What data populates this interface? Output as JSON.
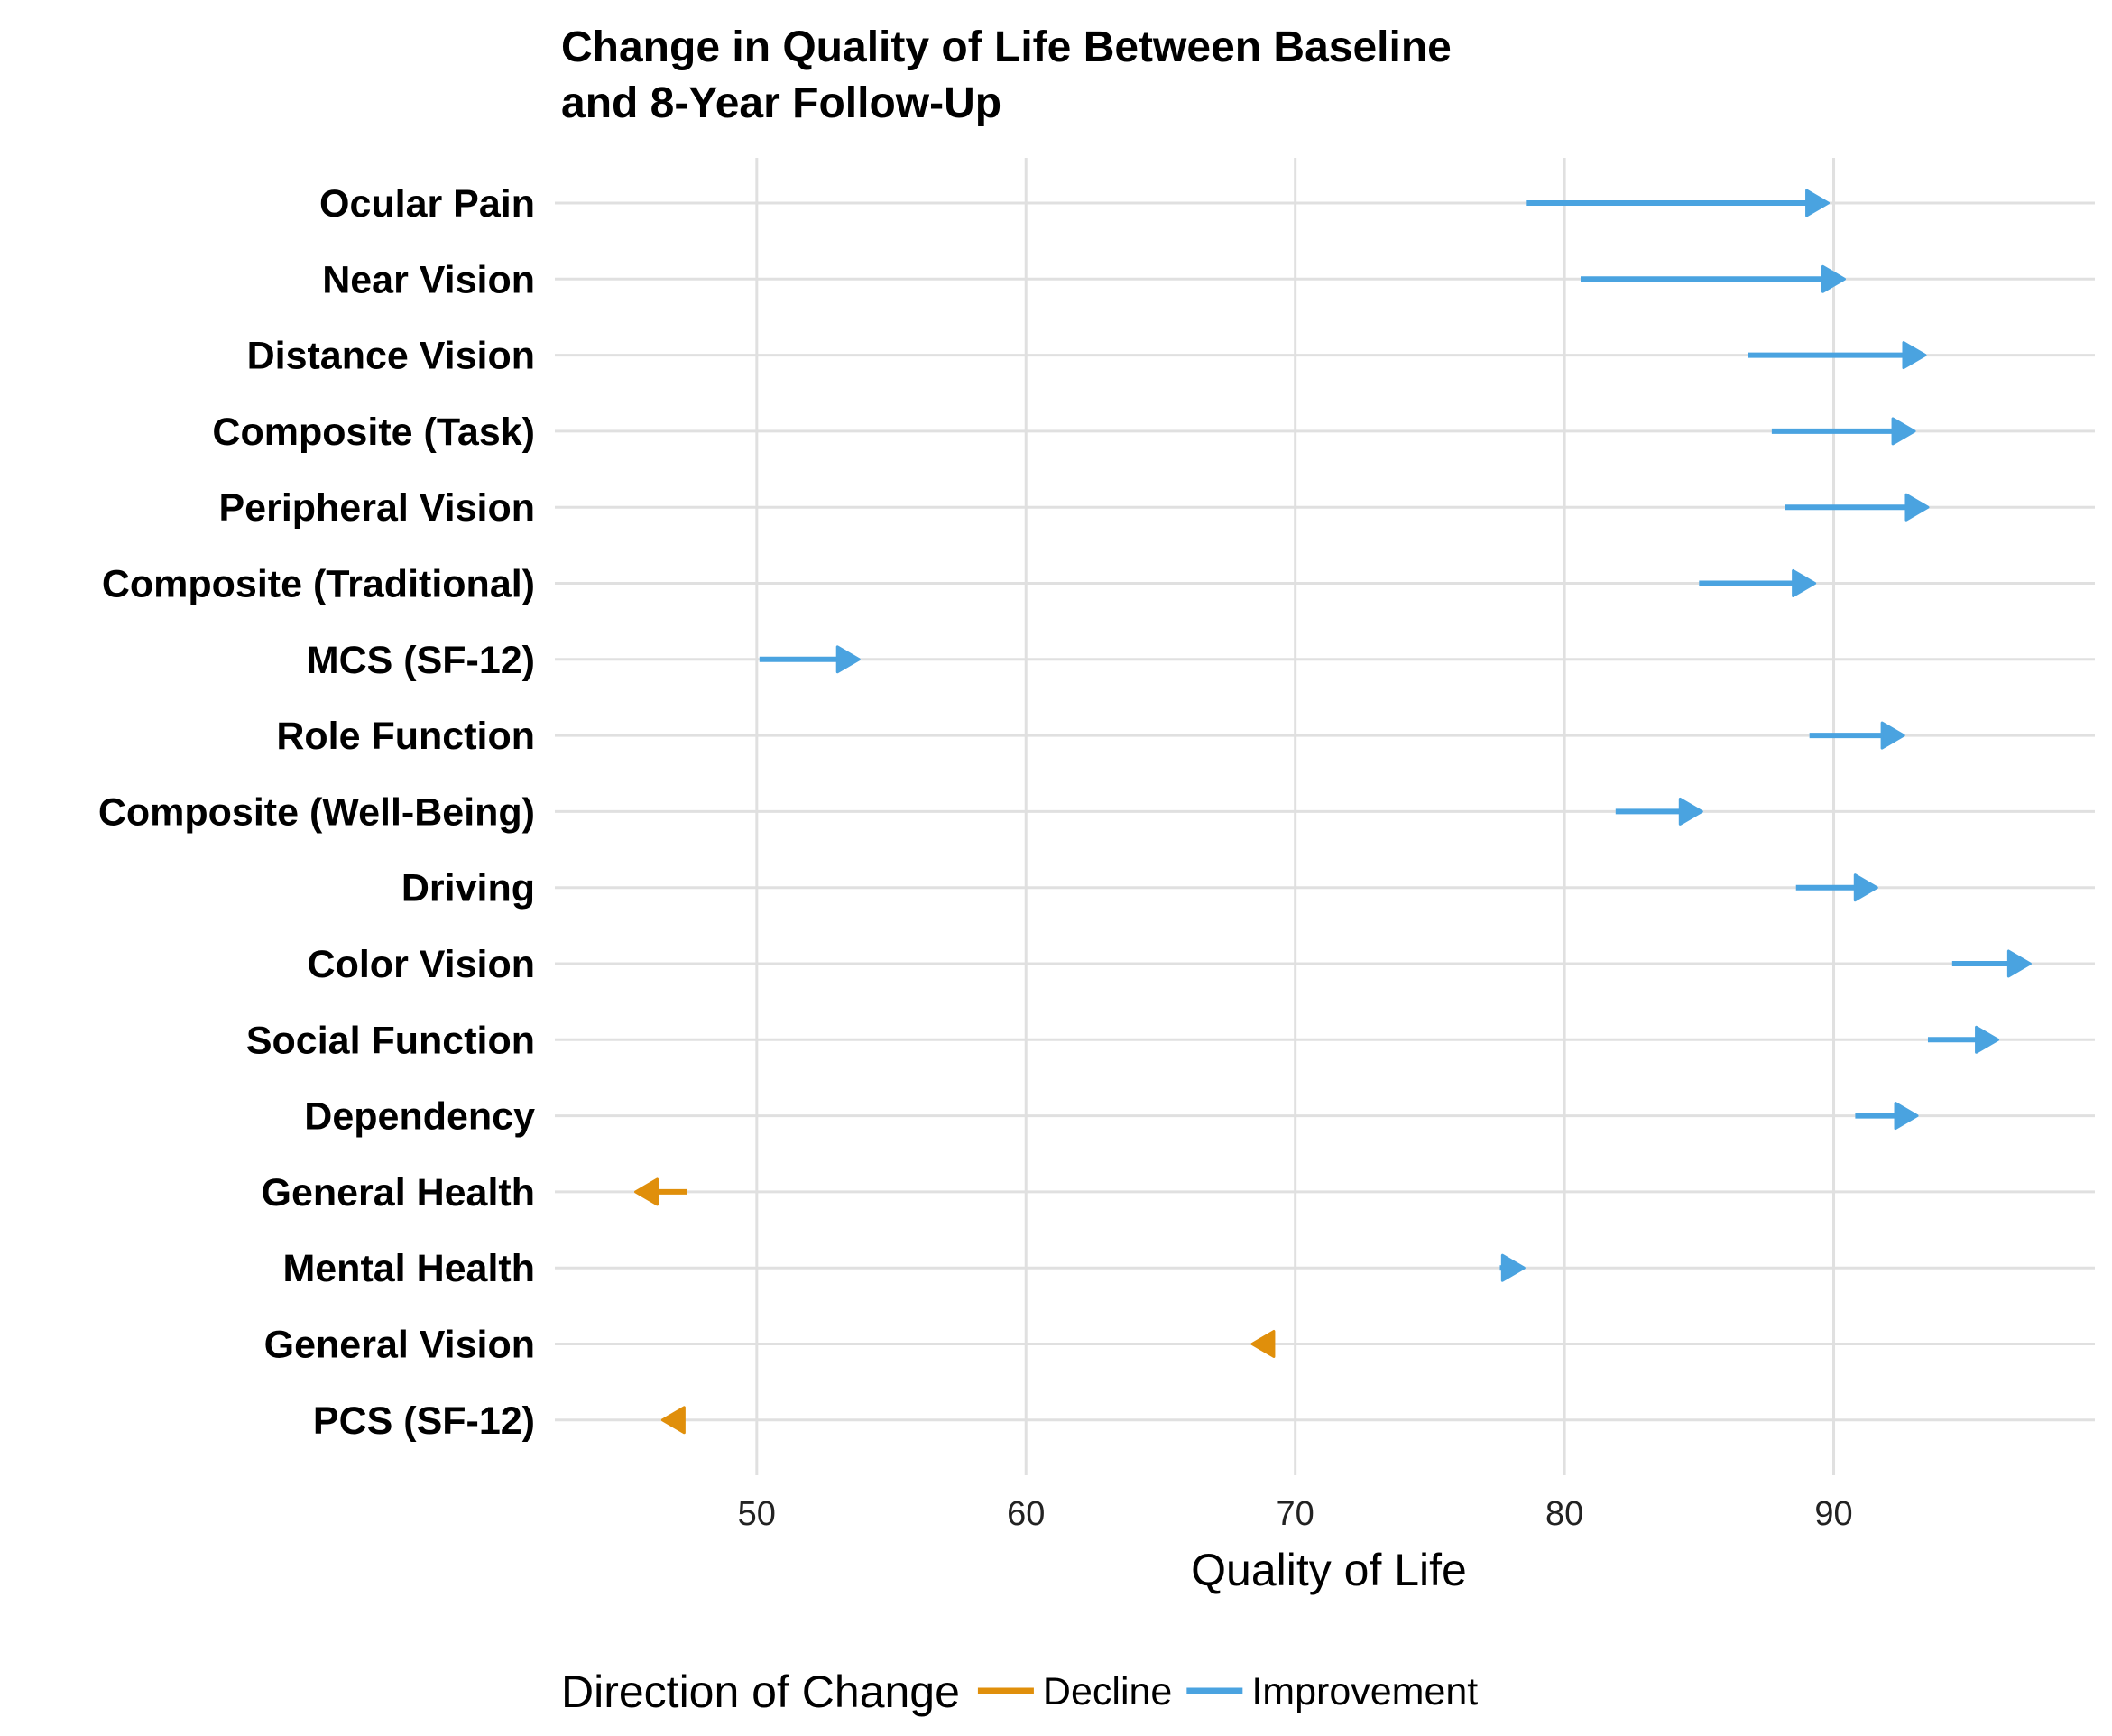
{
  "chart_data": {
    "type": "arrow-dumbbell",
    "title_lines": [
      "Change in Quality of Life Between Baseline",
      "and 8-Year Follow-Up"
    ],
    "xlabel": "Quality of Life",
    "ylabel": "",
    "xlim": [
      42.5,
      99.7
    ],
    "x_ticks": [
      50,
      60,
      70,
      80,
      90
    ],
    "grid": true,
    "legend": {
      "title": "Direction of Change",
      "position": "bottom",
      "entries": [
        {
          "label": "Decline",
          "color": "#E08F0B"
        },
        {
          "label": "Improvement",
          "color": "#4AA3E0"
        }
      ]
    },
    "categories": [
      "Ocular Pain",
      "Near Vision",
      "Distance Vision",
      "Composite (Task)",
      "Peripheral Vision",
      "Composite (Traditional)",
      "MCS (SF-12)",
      "Role Function",
      "Composite (Well-Being)",
      "Driving",
      "Color Vision",
      "Social Function",
      "Dependency",
      "General Health",
      "Mental Health",
      "General Vision",
      "PCS (SF-12)"
    ],
    "rows": [
      {
        "category": "Ocular Pain",
        "baseline": 78.6,
        "followup": 89.8,
        "direction": "Improvement"
      },
      {
        "category": "Near Vision",
        "baseline": 80.6,
        "followup": 90.4,
        "direction": "Improvement"
      },
      {
        "category": "Distance Vision",
        "baseline": 86.8,
        "followup": 93.4,
        "direction": "Improvement"
      },
      {
        "category": "Composite (Task)",
        "baseline": 87.7,
        "followup": 93.0,
        "direction": "Improvement"
      },
      {
        "category": "Peripheral Vision",
        "baseline": 88.2,
        "followup": 93.5,
        "direction": "Improvement"
      },
      {
        "category": "Composite (Traditional)",
        "baseline": 85.0,
        "followup": 89.3,
        "direction": "Improvement"
      },
      {
        "category": "MCS (SF-12)",
        "baseline": 50.1,
        "followup": 53.8,
        "direction": "Improvement"
      },
      {
        "category": "Role Function",
        "baseline": 89.1,
        "followup": 92.6,
        "direction": "Improvement"
      },
      {
        "category": "Composite (Well-Being)",
        "baseline": 81.9,
        "followup": 85.1,
        "direction": "Improvement"
      },
      {
        "category": "Driving",
        "baseline": 88.6,
        "followup": 91.6,
        "direction": "Improvement"
      },
      {
        "category": "Color Vision",
        "baseline": 94.4,
        "followup": 97.3,
        "direction": "Improvement"
      },
      {
        "category": "Social Function",
        "baseline": 93.5,
        "followup": 96.1,
        "direction": "Improvement"
      },
      {
        "category": "Dependency",
        "baseline": 90.8,
        "followup": 93.1,
        "direction": "Improvement"
      },
      {
        "category": "General Health",
        "baseline": 47.4,
        "followup": 45.5,
        "direction": "Decline"
      },
      {
        "category": "Mental Health",
        "baseline": 77.6,
        "followup": 78.5,
        "direction": "Improvement"
      },
      {
        "category": "General Vision",
        "baseline": 69.2,
        "followup": 68.4,
        "direction": "Decline"
      },
      {
        "category": "PCS (SF-12)",
        "baseline": 47.2,
        "followup": 46.5,
        "direction": "Decline"
      }
    ]
  }
}
